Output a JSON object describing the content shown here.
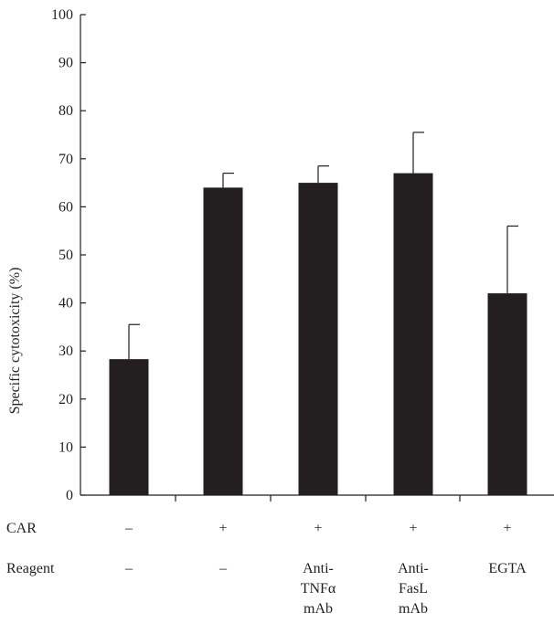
{
  "chart_data": {
    "type": "bar",
    "ylabel": "Specific cytotoxicity (%)",
    "ylim": [
      0,
      100
    ],
    "yticks": [
      0,
      10,
      20,
      30,
      40,
      50,
      60,
      70,
      80,
      90,
      100
    ],
    "categories": [
      {
        "car": "–",
        "reagent": [
          "–"
        ]
      },
      {
        "car": "+",
        "reagent": [
          "–"
        ]
      },
      {
        "car": "+",
        "reagent": [
          "Anti-",
          "TNFα",
          "mAb"
        ]
      },
      {
        "car": "+",
        "reagent": [
          "Anti-",
          "FasL",
          "mAb"
        ]
      },
      {
        "car": "+",
        "reagent": [
          "EGTA"
        ]
      }
    ],
    "values": [
      28.3,
      64.0,
      65.0,
      67.0,
      42.0
    ],
    "error_upper": [
      35.5,
      67.0,
      68.5,
      75.5,
      56.0
    ],
    "row_labels": {
      "car": "CAR",
      "reagent": "Reagent"
    },
    "bar_color": "#231f20",
    "axis_color": "#231f20",
    "grid": false
  }
}
